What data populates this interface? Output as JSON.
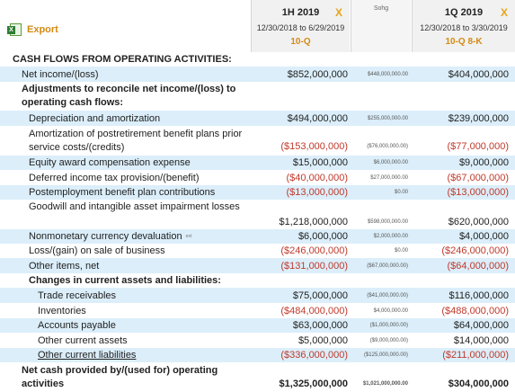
{
  "export": {
    "label": "Export",
    "icon": "excel-icon"
  },
  "columns": [
    {
      "period": "1H 2019",
      "dates": "12/30/2018 to 6/29/2019",
      "form": "10-Q",
      "close": "X"
    },
    {
      "label": "Sohg"
    },
    {
      "period": "1Q 2019",
      "dates": "12/30/2018 to 3/30/2019",
      "form": "10-Q 8-K",
      "close": "X"
    }
  ],
  "section_title": "CASH FLOWS FROM OPERATING ACTIVITIES:",
  "rows": [
    {
      "label": "Net income/(loss)",
      "v1": "$852,000,000",
      "vd": "$448,000,000.00",
      "v2": "$404,000,000"
    },
    {
      "label": "Adjustments to reconcile net income/(loss) to",
      "label2": "operating cash flows:"
    },
    {
      "label": "Depreciation and amortization",
      "v1": "$494,000,000",
      "vd": "$255,000,000.00",
      "v2": "$239,000,000"
    },
    {
      "label": "Amortization of postretirement benefit plans prior",
      "label2": "service costs/(credits)",
      "v1": "($153,000,000)",
      "vd": "($76,000,000.00)",
      "v2": "($77,000,000)"
    },
    {
      "label": "Equity award compensation expense",
      "v1": "$15,000,000",
      "vd": "$6,000,000.00",
      "v2": "$9,000,000"
    },
    {
      "label": "Deferred income tax provision/(benefit)",
      "v1": "($40,000,000)",
      "vd": "$27,000,000.00",
      "v2": "($67,000,000)"
    },
    {
      "label": "Postemployment benefit plan contributions",
      "v1": "($13,000,000)",
      "vd": "$0.00",
      "v2": "($13,000,000)"
    },
    {
      "label": "Goodwill and intangible asset impairment losses"
    },
    {
      "label": "",
      "v1": "$1,218,000,000",
      "vd": "$598,000,000.00",
      "v2": "$620,000,000"
    },
    {
      "label": "Nonmonetary currency devaluation",
      "tag": "ext",
      "v1": "$6,000,000",
      "vd": "$2,000,000.00",
      "v2": "$4,000,000"
    },
    {
      "label": "Loss/(gain) on sale of business",
      "v1": "($246,000,000)",
      "vd": "$0.00",
      "v2": "($246,000,000)"
    },
    {
      "label": "Other items, net",
      "v1": "($131,000,000)",
      "vd": "($67,000,000.00)",
      "v2": "($64,000,000)"
    },
    {
      "label": "Changes in current assets and liabilities:"
    },
    {
      "label": "Trade receivables",
      "v1": "$75,000,000",
      "vd": "($41,000,000.00)",
      "v2": "$116,000,000"
    },
    {
      "label": "Inventories",
      "v1": "($484,000,000)",
      "vd": "$4,000,000.00",
      "v2": "($488,000,000)"
    },
    {
      "label": "Accounts payable",
      "v1": "$63,000,000",
      "vd": "($1,000,000.00)",
      "v2": "$64,000,000"
    },
    {
      "label": "Other current assets",
      "v1": "$5,000,000",
      "vd": "($9,000,000.00)",
      "v2": "$14,000,000"
    },
    {
      "label": "Other current liabilities",
      "v1": "($336,000,000)",
      "vd": "($125,000,000.00)",
      "v2": "($211,000,000)"
    },
    {
      "label": "Net cash provided by/(used for) operating",
      "label2": "activities",
      "v1": "$1,325,000,000",
      "vd": "$1,021,000,000.00",
      "v2": "$304,000,000"
    }
  ]
}
